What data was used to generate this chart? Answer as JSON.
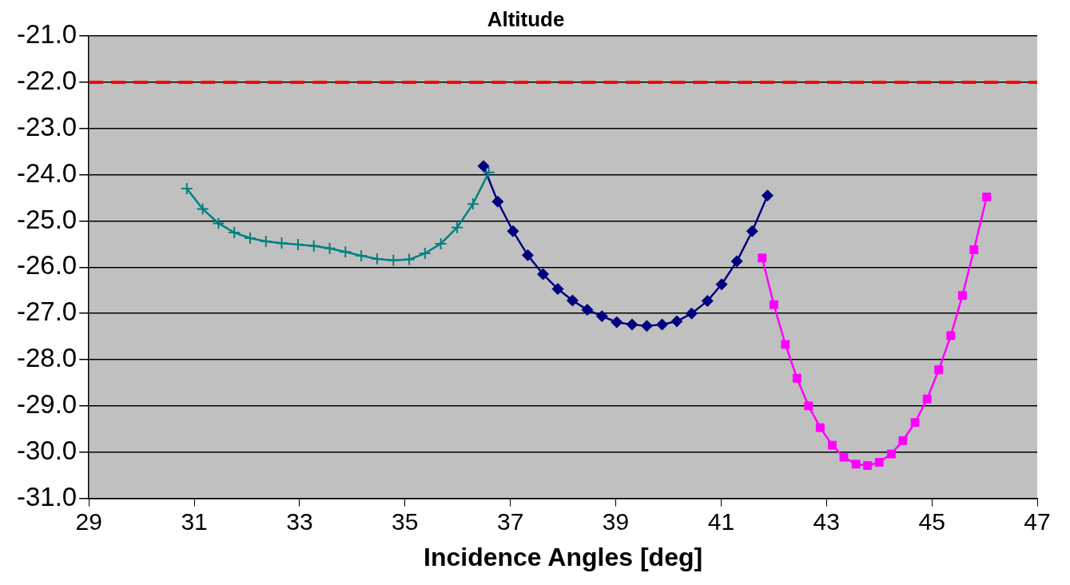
{
  "chart_data": {
    "type": "line",
    "title": "Altitude",
    "xlabel": "Incidence Angles [deg]",
    "xlim": [
      29,
      47
    ],
    "xticks": [
      29,
      31,
      33,
      35,
      37,
      39,
      41,
      43,
      45,
      47
    ],
    "ylim": [
      -31,
      -21
    ],
    "yticks": [
      {
        "value": -31,
        "label": "-31.0"
      },
      {
        "value": -30,
        "label": "-30.0"
      },
      {
        "value": -29,
        "label": "-29.0"
      },
      {
        "value": -28,
        "label": "-28.0"
      },
      {
        "value": -27,
        "label": "-27.0"
      },
      {
        "value": -26,
        "label": "-26.0"
      },
      {
        "value": -25,
        "label": "-25.0"
      },
      {
        "value": -24,
        "label": "-24.0"
      },
      {
        "value": -23,
        "label": "-23.0"
      },
      {
        "value": -22,
        "label": "-22.0"
      },
      {
        "value": -21,
        "label": "-21.0"
      }
    ],
    "grid": "y",
    "legend": false,
    "series": [
      {
        "color": "#008080",
        "marker": "cross",
        "x": [
          30.86,
          31.16,
          31.46,
          31.76,
          32.06,
          32.36,
          32.66,
          32.97,
          33.27,
          33.57,
          33.87,
          34.17,
          34.47,
          34.78,
          35.08,
          35.38,
          35.68,
          35.99,
          36.29,
          36.59
        ],
        "values": [
          -24.3,
          -24.74,
          -25.05,
          -25.25,
          -25.37,
          -25.44,
          -25.48,
          -25.51,
          -25.54,
          -25.59,
          -25.67,
          -25.75,
          -25.82,
          -25.85,
          -25.83,
          -25.7,
          -25.49,
          -25.14,
          -24.63,
          -23.95
        ]
      },
      {
        "color": "#000080",
        "marker": "diamond",
        "x": [
          36.49,
          36.76,
          37.05,
          37.33,
          37.62,
          37.9,
          38.18,
          38.46,
          38.74,
          39.02,
          39.31,
          39.59,
          39.88,
          40.16,
          40.44,
          40.74,
          41.01,
          41.3,
          41.59,
          41.88
        ],
        "values": [
          -23.81,
          -24.58,
          -25.22,
          -25.74,
          -26.15,
          -26.47,
          -26.72,
          -26.92,
          -27.06,
          -27.19,
          -27.24,
          -27.27,
          -27.24,
          -27.17,
          -27.0,
          -26.73,
          -26.37,
          -25.87,
          -25.22,
          -24.45
        ]
      },
      {
        "color": "#ff00ff",
        "marker": "square",
        "x": [
          41.78,
          42.0,
          42.22,
          42.44,
          42.66,
          42.88,
          43.11,
          43.33,
          43.56,
          43.78,
          44.0,
          44.23,
          44.45,
          44.68,
          44.91,
          45.13,
          45.36,
          45.58,
          45.8,
          46.04
        ],
        "values": [
          -25.8,
          -26.81,
          -27.67,
          -28.4,
          -29.0,
          -29.47,
          -29.85,
          -30.11,
          -30.26,
          -30.29,
          -30.22,
          -30.04,
          -29.75,
          -29.36,
          -28.85,
          -28.22,
          -27.48,
          -26.61,
          -25.62,
          -24.48
        ]
      }
    ],
    "ref_lines": [
      {
        "axis": "y",
        "value": -22,
        "color": "#ff0000",
        "line_style": "dashed"
      }
    ]
  }
}
